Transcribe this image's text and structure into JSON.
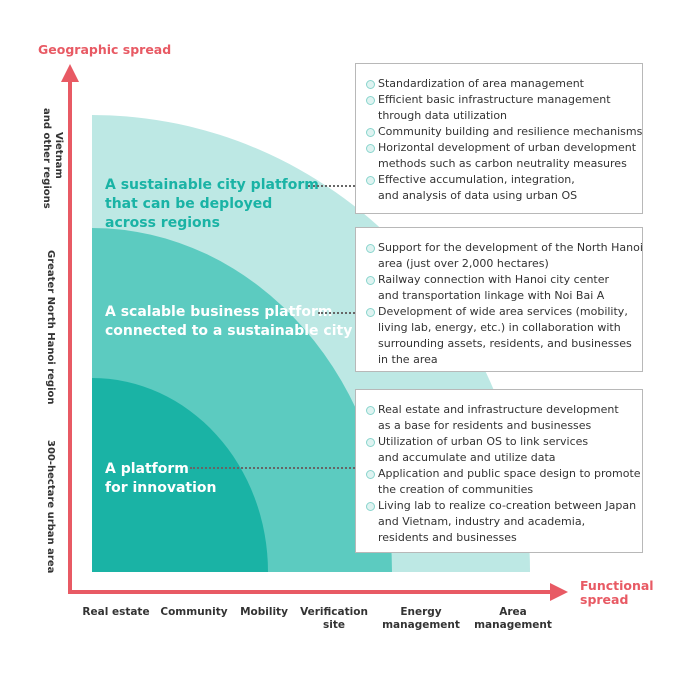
{
  "axes": {
    "y_title": "Geographic spread",
    "x_title": "Functional\nspread",
    "y_levels": [
      "Vietnam\nand other regions",
      "Greater North Hanoi region",
      "300-hectare urban area"
    ],
    "x_categories": [
      "Real estate",
      "Community",
      "Mobility",
      "Verification\nsite",
      "Energy\nmanagement",
      "Area\nmanagement"
    ]
  },
  "platforms": [
    {
      "title": "A sustainable city platform\nthat can be deployed\nacross regions",
      "items": [
        "Standardization of area management",
        "Efficient basic infrastructure management\nthrough data utilization",
        "Community building and resilience mechanisms",
        "Horizontal development of urban development\nmethods such as carbon neutrality measures",
        "Effective accumulation, integration,\nand analysis of data using urban OS"
      ]
    },
    {
      "title": "A scalable business platform\nconnected to a sustainable city",
      "items": [
        "Support for the development of the North Hanoi\narea (just over 2,000 hectares)",
        "Railway connection with Hanoi city center\nand transportation linkage with Noi Bai A",
        "Development of wide area services (mobility,\nliving lab, energy, etc.) in collaboration with\nsurrounding assets, residents, and businesses\nin the area"
      ]
    },
    {
      "title": "A platform\nfor innovation",
      "items": [
        "Real estate and infrastructure development\nas a base for residents and businesses",
        "Utilization of urban OS to link services\nand accumulate and utilize data",
        "Application and public space design to promote\nthe creation of communities",
        "Living lab to realize co-creation between Japan\nand Vietnam, industry and academia,\nresidents and businesses"
      ]
    }
  ],
  "colors": {
    "axis": "#e85a64",
    "light": "#bde8e4",
    "mid": "#5ccbc0",
    "dark": "#1ab3a5"
  }
}
